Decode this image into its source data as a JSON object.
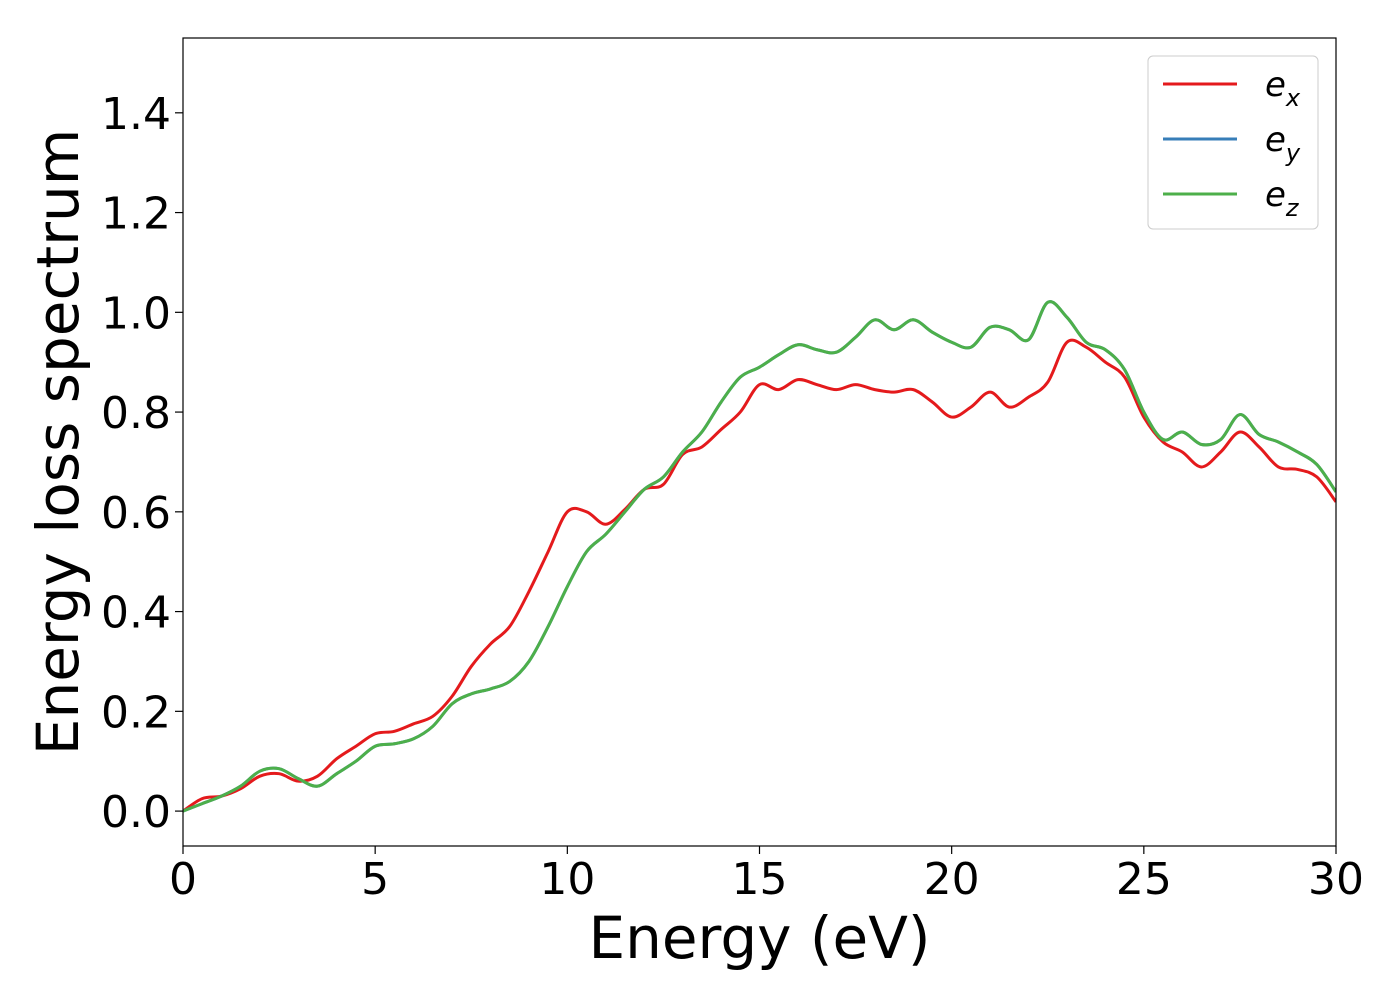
{
  "chart_data": {
    "type": "line",
    "title": "",
    "xlabel": "Energy (eV)",
    "ylabel": "Energy loss spectrum",
    "xlim": [
      0,
      30
    ],
    "ylim": [
      -0.07,
      1.55
    ],
    "xticks": [
      0,
      5,
      10,
      15,
      20,
      25,
      30
    ],
    "yticks": [
      0.0,
      0.2,
      0.4,
      0.6,
      0.8,
      1.0,
      1.2,
      1.4
    ],
    "xtick_labels": [
      "0",
      "5",
      "10",
      "15",
      "20",
      "25",
      "30"
    ],
    "ytick_labels": [
      "0.0",
      "0.2",
      "0.4",
      "0.6",
      "0.8",
      "1.0",
      "1.2",
      "1.4"
    ],
    "grid": false,
    "legend_position": "top-right",
    "series": [
      {
        "name": "e_x",
        "color": "#e41a1c",
        "x": [
          0,
          0.5,
          1.0,
          1.5,
          2.0,
          2.5,
          3.0,
          3.5,
          4.0,
          4.5,
          5.0,
          5.5,
          6.0,
          6.5,
          7.0,
          7.5,
          8.0,
          8.5,
          9.0,
          9.5,
          10.0,
          10.5,
          11.0,
          11.5,
          12.0,
          12.5,
          13.0,
          13.5,
          14.0,
          14.5,
          15.0,
          15.5,
          16.0,
          16.5,
          17.0,
          17.5,
          18.0,
          18.5,
          19.0,
          19.5,
          20.0,
          20.5,
          21.0,
          21.5,
          22.0,
          22.5,
          23.0,
          23.5,
          24.0,
          24.5,
          25.0,
          25.5,
          26.0,
          26.5,
          27.0,
          27.5,
          28.0,
          28.5,
          29.0,
          29.5,
          30.0
        ],
        "y": [
          0.0,
          0.025,
          0.03,
          0.045,
          0.07,
          0.075,
          0.06,
          0.07,
          0.105,
          0.13,
          0.155,
          0.16,
          0.175,
          0.19,
          0.23,
          0.29,
          0.335,
          0.37,
          0.44,
          0.52,
          0.6,
          0.6,
          0.575,
          0.605,
          0.645,
          0.655,
          0.715,
          0.73,
          0.765,
          0.8,
          0.855,
          0.845,
          0.865,
          0.855,
          0.845,
          0.855,
          0.845,
          0.84,
          0.845,
          0.82,
          0.79,
          0.81,
          0.84,
          0.81,
          0.83,
          0.86,
          0.94,
          0.93,
          0.9,
          0.87,
          0.79,
          0.74,
          0.72,
          0.69,
          0.72,
          0.76,
          0.73,
          0.69,
          0.685,
          0.67,
          0.62
        ]
      },
      {
        "name": "e_y",
        "color": "#377eb8",
        "x": [
          0,
          0.5,
          1.0,
          1.5,
          2.0,
          2.5,
          3.0,
          3.5,
          4.0,
          4.5,
          5.0,
          5.5,
          6.0,
          6.5,
          7.0,
          7.5,
          8.0,
          8.5,
          9.0,
          9.5,
          10.0,
          10.5,
          11.0,
          11.5,
          12.0,
          12.5,
          13.0,
          13.5,
          14.0,
          14.5,
          15.0,
          15.5,
          16.0,
          16.5,
          17.0,
          17.5,
          18.0,
          18.5,
          19.0,
          19.5,
          20.0,
          20.5,
          21.0,
          21.5,
          22.0,
          22.5,
          23.0,
          23.5,
          24.0,
          24.5,
          25.0,
          25.5,
          26.0,
          26.5,
          27.0,
          27.5,
          28.0,
          28.5,
          29.0,
          29.5,
          30.0
        ],
        "y": [
          0.0,
          0.015,
          0.03,
          0.05,
          0.08,
          0.085,
          0.065,
          0.05,
          0.075,
          0.1,
          0.13,
          0.135,
          0.145,
          0.17,
          0.215,
          0.235,
          0.245,
          0.26,
          0.3,
          0.37,
          0.45,
          0.52,
          0.555,
          0.6,
          0.645,
          0.67,
          0.72,
          0.76,
          0.82,
          0.87,
          0.89,
          0.915,
          0.935,
          0.925,
          0.92,
          0.95,
          0.985,
          0.965,
          0.985,
          0.96,
          0.94,
          0.93,
          0.97,
          0.965,
          0.945,
          1.02,
          0.99,
          0.94,
          0.925,
          0.885,
          0.8,
          0.745,
          0.76,
          0.735,
          0.745,
          0.795,
          0.755,
          0.74,
          0.72,
          0.695,
          0.64
        ]
      },
      {
        "name": "e_z",
        "color": "#4daf4a",
        "x": [
          0,
          0.5,
          1.0,
          1.5,
          2.0,
          2.5,
          3.0,
          3.5,
          4.0,
          4.5,
          5.0,
          5.5,
          6.0,
          6.5,
          7.0,
          7.5,
          8.0,
          8.5,
          9.0,
          9.5,
          10.0,
          10.5,
          11.0,
          11.5,
          12.0,
          12.5,
          13.0,
          13.5,
          14.0,
          14.5,
          15.0,
          15.5,
          16.0,
          16.5,
          17.0,
          17.5,
          18.0,
          18.5,
          19.0,
          19.5,
          20.0,
          20.5,
          21.0,
          21.5,
          22.0,
          22.5,
          23.0,
          23.5,
          24.0,
          24.5,
          25.0,
          25.5,
          26.0,
          26.5,
          27.0,
          27.5,
          28.0,
          28.5,
          29.0,
          29.5,
          30.0
        ],
        "y": [
          0.0,
          0.015,
          0.03,
          0.05,
          0.08,
          0.085,
          0.065,
          0.05,
          0.075,
          0.1,
          0.13,
          0.135,
          0.145,
          0.17,
          0.215,
          0.235,
          0.245,
          0.26,
          0.3,
          0.37,
          0.45,
          0.52,
          0.555,
          0.6,
          0.645,
          0.67,
          0.72,
          0.76,
          0.82,
          0.87,
          0.89,
          0.915,
          0.935,
          0.925,
          0.92,
          0.95,
          0.985,
          0.965,
          0.985,
          0.96,
          0.94,
          0.93,
          0.97,
          0.965,
          0.945,
          1.02,
          0.99,
          0.94,
          0.925,
          0.885,
          0.8,
          0.745,
          0.76,
          0.735,
          0.745,
          0.795,
          0.755,
          0.74,
          0.72,
          0.695,
          0.64
        ]
      }
    ],
    "legend": [
      {
        "base": "e",
        "sub": "x",
        "color": "#e41a1c"
      },
      {
        "base": "e",
        "sub": "y",
        "color": "#377eb8"
      },
      {
        "base": "e",
        "sub": "z",
        "color": "#4daf4a"
      }
    ]
  }
}
